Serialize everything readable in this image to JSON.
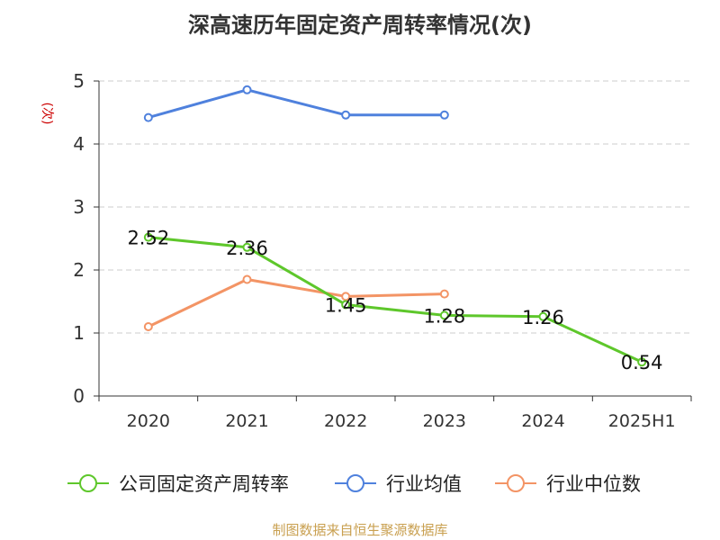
{
  "colors": {
    "company": "#5ec72b",
    "industry_avg": "#4f81dd",
    "industry_median": "#f39465",
    "ylabel": "#cc0000",
    "axis": "#333333",
    "grid": "#cccccc",
    "source": "#c9a050"
  },
  "source_text": "制图数据来自恒生聚源数据库",
  "chart_data": {
    "type": "line",
    "title": "深高速历年固定资产周转率情况(次)",
    "ylabel": "(次)",
    "xlabel": "",
    "ylim": [
      0,
      5
    ],
    "yticks": [
      "0",
      "1",
      "2",
      "3",
      "4",
      "5"
    ],
    "grid": "horizontal-dashed",
    "legend_position": "bottom",
    "categories": [
      "2020",
      "2021",
      "2022",
      "2023",
      "2024",
      "2025H1"
    ],
    "series": [
      {
        "name": "公司固定资产周转率",
        "color": "#5ec72b",
        "values": [
          2.52,
          2.36,
          1.45,
          1.28,
          1.26,
          0.54
        ],
        "labels": [
          "2.52",
          "2.36",
          "1.45",
          "1.28",
          "1.26",
          "0.54"
        ]
      },
      {
        "name": "行业均值",
        "color": "#4f81dd",
        "values": [
          4.42,
          4.86,
          4.46,
          4.46,
          null,
          null
        ]
      },
      {
        "name": "行业中位数",
        "color": "#f39465",
        "values": [
          1.1,
          1.85,
          1.58,
          1.62,
          null,
          null
        ]
      }
    ]
  }
}
